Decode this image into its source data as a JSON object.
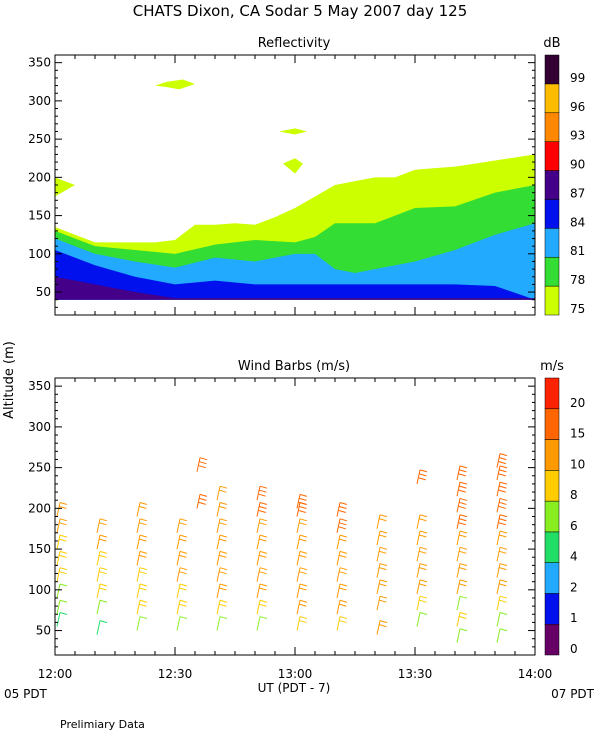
{
  "title": "CHATS Dixon, CA  Sodar   5 May 2007  day 125",
  "footer_note": "Prelimiary Data",
  "shared_ylabel": "Altitude (m)",
  "chart_data": [
    {
      "type": "area",
      "title": "Reflectivity",
      "ylabel": "Altitude (m)",
      "ylim": [
        20,
        360
      ],
      "xlim_minutes": [
        0,
        120
      ],
      "yticks": [
        50,
        100,
        150,
        200,
        250,
        300,
        350
      ],
      "colorbar": {
        "unit": "dB",
        "levels": [
          "75",
          "78",
          "81",
          "84",
          "87",
          "90",
          "93",
          "96",
          "99"
        ],
        "colors": [
          "#ccff00",
          "#33dd33",
          "#22aaff",
          "#0011ee",
          "#440088",
          "#ff0000",
          "#ff8800",
          "#ffbb00",
          "#330033"
        ]
      },
      "bands": [
        {
          "level": "75 dB",
          "x": [
            0,
            5,
            10,
            15,
            20,
            25,
            30,
            35,
            40,
            45,
            50,
            55,
            60,
            65,
            70,
            75,
            80,
            85,
            90,
            95,
            100,
            105,
            110,
            115,
            120
          ],
          "top": [
            135,
            125,
            115,
            115,
            115,
            115,
            118,
            138,
            138,
            140,
            138,
            148,
            160,
            175,
            190,
            195,
            200,
            200,
            210,
            212,
            214,
            218,
            222,
            226,
            230
          ]
        },
        {
          "level": "78 dB",
          "x": [
            0,
            10,
            20,
            30,
            40,
            50,
            60,
            65,
            70,
            80,
            90,
            100,
            110,
            120
          ],
          "top": [
            130,
            110,
            105,
            100,
            112,
            118,
            115,
            122,
            140,
            140,
            160,
            162,
            180,
            190
          ]
        },
        {
          "level": "81 dB",
          "x": [
            0,
            10,
            20,
            30,
            40,
            50,
            60,
            65,
            70,
            75,
            80,
            90,
            100,
            110,
            120
          ],
          "top": [
            120,
            100,
            90,
            82,
            95,
            90,
            100,
            100,
            80,
            75,
            80,
            90,
            105,
            125,
            140
          ]
        },
        {
          "level": "84 dB",
          "x": [
            0,
            10,
            20,
            30,
            40,
            50,
            60,
            70,
            80,
            90,
            100,
            110,
            120
          ],
          "top": [
            105,
            85,
            70,
            60,
            65,
            60,
            60,
            60,
            60,
            60,
            60,
            58,
            40
          ]
        },
        {
          "level": "87 dB",
          "x": [
            0,
            10,
            20,
            30,
            40,
            50,
            60,
            70,
            80,
            90,
            100,
            110,
            120
          ],
          "top": [
            70,
            60,
            50,
            42,
            42,
            42,
            42,
            42,
            42,
            42,
            42,
            42,
            42
          ]
        }
      ],
      "cloud_patches": [
        {
          "level": "75 dB",
          "x": [
            25,
            28,
            32,
            35,
            31,
            28
          ],
          "y": [
            320,
            325,
            328,
            322,
            315,
            318
          ]
        },
        {
          "level": "75 dB",
          "x": [
            56,
            60,
            63,
            60
          ],
          "y": [
            260,
            264,
            260,
            256
          ]
        },
        {
          "level": "75 dB",
          "x": [
            57,
            60,
            62,
            60
          ],
          "y": [
            218,
            225,
            218,
            205
          ]
        },
        {
          "level": "75 dB",
          "x": [
            0,
            5,
            0
          ],
          "y": [
            200,
            190,
            175
          ]
        }
      ]
    },
    {
      "type": "scatter",
      "title": "Wind Barbs (m/s)",
      "ylabel": "Altitude (m)",
      "ylim": [
        20,
        360
      ],
      "xlim_minutes": [
        0,
        120
      ],
      "yticks": [
        50,
        100,
        150,
        200,
        250,
        300,
        350
      ],
      "xticks": [
        {
          "minute": 0,
          "label": "12:00"
        },
        {
          "minute": 30,
          "label": "12:30"
        },
        {
          "minute": 60,
          "label": "13:00"
        },
        {
          "minute": 90,
          "label": "13:30"
        },
        {
          "minute": 120,
          "label": "14:00"
        }
      ],
      "xlabel": "UT  (PDT - 7)",
      "date_left": "05 PDT",
      "date_right": "07 PDT",
      "colorbar": {
        "unit": "m/s",
        "levels": [
          "0",
          "1",
          "2",
          "4",
          "6",
          "8",
          "10",
          "15",
          "20"
        ],
        "colors": [
          "#660066",
          "#0011ee",
          "#22aaff",
          "#22dd66",
          "#88ee22",
          "#ffcc00",
          "#ff9900",
          "#ff6600",
          "#ff2200"
        ]
      },
      "profiles": [
        {
          "minute": 0,
          "alts": [
            55,
            70,
            90,
            110,
            130,
            150,
            170,
            190
          ],
          "speeds": [
            4,
            6,
            6,
            8,
            8,
            8,
            10,
            10
          ]
        },
        {
          "minute": 10,
          "alts": [
            45,
            70,
            90,
            110,
            130,
            150,
            170
          ],
          "speeds": [
            4,
            6,
            8,
            8,
            8,
            10,
            10
          ]
        },
        {
          "minute": 20,
          "alts": [
            50,
            70,
            90,
            110,
            130,
            150,
            170,
            190
          ],
          "speeds": [
            6,
            8,
            8,
            8,
            10,
            10,
            10,
            10
          ]
        },
        {
          "minute": 30,
          "alts": [
            50,
            70,
            90,
            110,
            130,
            150,
            170
          ],
          "speeds": [
            6,
            8,
            8,
            10,
            10,
            10,
            10
          ]
        },
        {
          "minute": 35,
          "alts": [
            200,
            245
          ],
          "speeds": [
            15,
            15
          ]
        },
        {
          "minute": 40,
          "alts": [
            50,
            70,
            90,
            110,
            130,
            150,
            170,
            190,
            210
          ],
          "speeds": [
            6,
            8,
            10,
            10,
            10,
            10,
            10,
            10,
            10
          ]
        },
        {
          "minute": 50,
          "alts": [
            50,
            70,
            90,
            110,
            130,
            150,
            170,
            190,
            210
          ],
          "speeds": [
            6,
            8,
            10,
            10,
            10,
            10,
            10,
            15,
            15
          ]
        },
        {
          "minute": 60,
          "alts": [
            50,
            70,
            90,
            110,
            130,
            150,
            170,
            190,
            200
          ],
          "speeds": [
            8,
            10,
            10,
            10,
            10,
            10,
            10,
            15,
            15
          ]
        },
        {
          "minute": 70,
          "alts": [
            50,
            70,
            90,
            110,
            130,
            150,
            170,
            190
          ],
          "speeds": [
            8,
            10,
            10,
            10,
            10,
            10,
            15,
            15
          ]
        },
        {
          "minute": 80,
          "alts": [
            45,
            75,
            95,
            115,
            135,
            155,
            175
          ],
          "speeds": [
            10,
            10,
            10,
            10,
            10,
            10,
            10
          ]
        },
        {
          "minute": 90,
          "alts": [
            55,
            75,
            95,
            115,
            135,
            155,
            175,
            230
          ],
          "speeds": [
            6,
            8,
            10,
            10,
            10,
            10,
            10,
            15
          ]
        },
        {
          "minute": 100,
          "alts": [
            35,
            55,
            75,
            95,
            115,
            135,
            155,
            175,
            195,
            215,
            235
          ],
          "speeds": [
            6,
            8,
            6,
            10,
            10,
            10,
            10,
            15,
            15,
            15,
            15
          ]
        },
        {
          "minute": 110,
          "alts": [
            35,
            55,
            75,
            95,
            115,
            135,
            155,
            175,
            195,
            215,
            235,
            250
          ],
          "speeds": [
            6,
            6,
            8,
            10,
            10,
            10,
            10,
            15,
            15,
            15,
            15,
            15
          ]
        }
      ]
    }
  ]
}
